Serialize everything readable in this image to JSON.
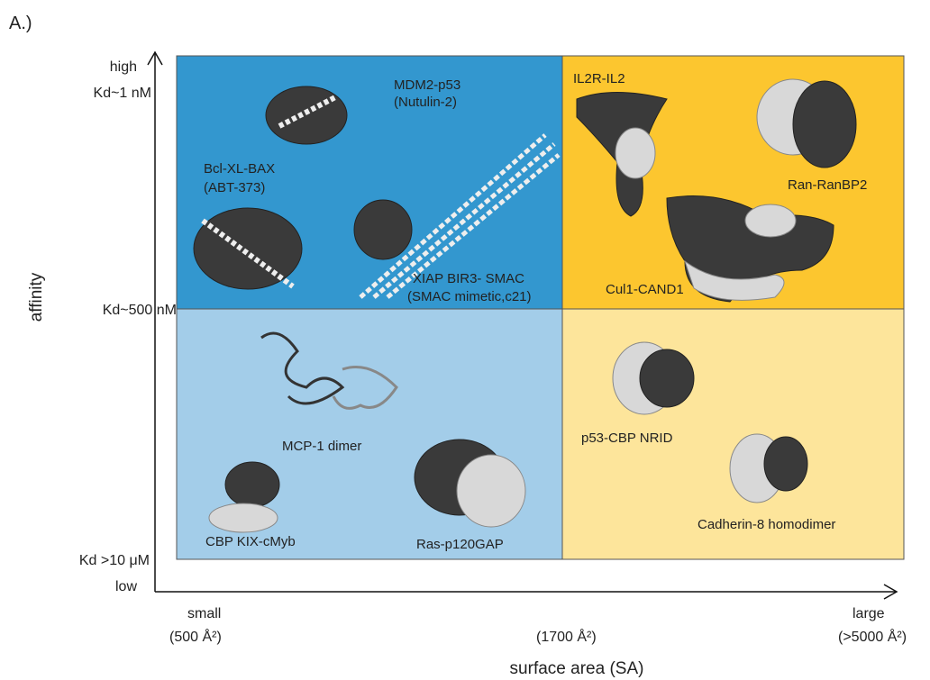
{
  "panel_label": "A.)",
  "y_axis": {
    "title": "affinity",
    "labels": [
      "high",
      "Kd~1 nM",
      "Kd~500 nM",
      "Kd >10 μM",
      "low"
    ]
  },
  "x_axis": {
    "title": "surface area (SA)",
    "labels": [
      "small",
      "(500 Å²)",
      "(1700 Å²)",
      "large",
      "(>5000 Å²)"
    ]
  },
  "quadrants": {
    "top_left": [
      "MDM2-p53",
      "(Nutulin-2)",
      "Bcl-XL-BAX",
      "(ABT-373)",
      "XIAP BIR3- SMAC",
      "(SMAC mimetic,c21)"
    ],
    "top_right": [
      "IL2R-IL2",
      "Ran-RanBP2",
      "Cul1-CAND1"
    ],
    "bottom_left": [
      "MCP-1 dimer",
      "CBP KIX-cMyb",
      "Ras-p120GAP"
    ],
    "bottom_right": [
      "p53-CBP NRID",
      "Cadherin-8 homodimer"
    ]
  }
}
